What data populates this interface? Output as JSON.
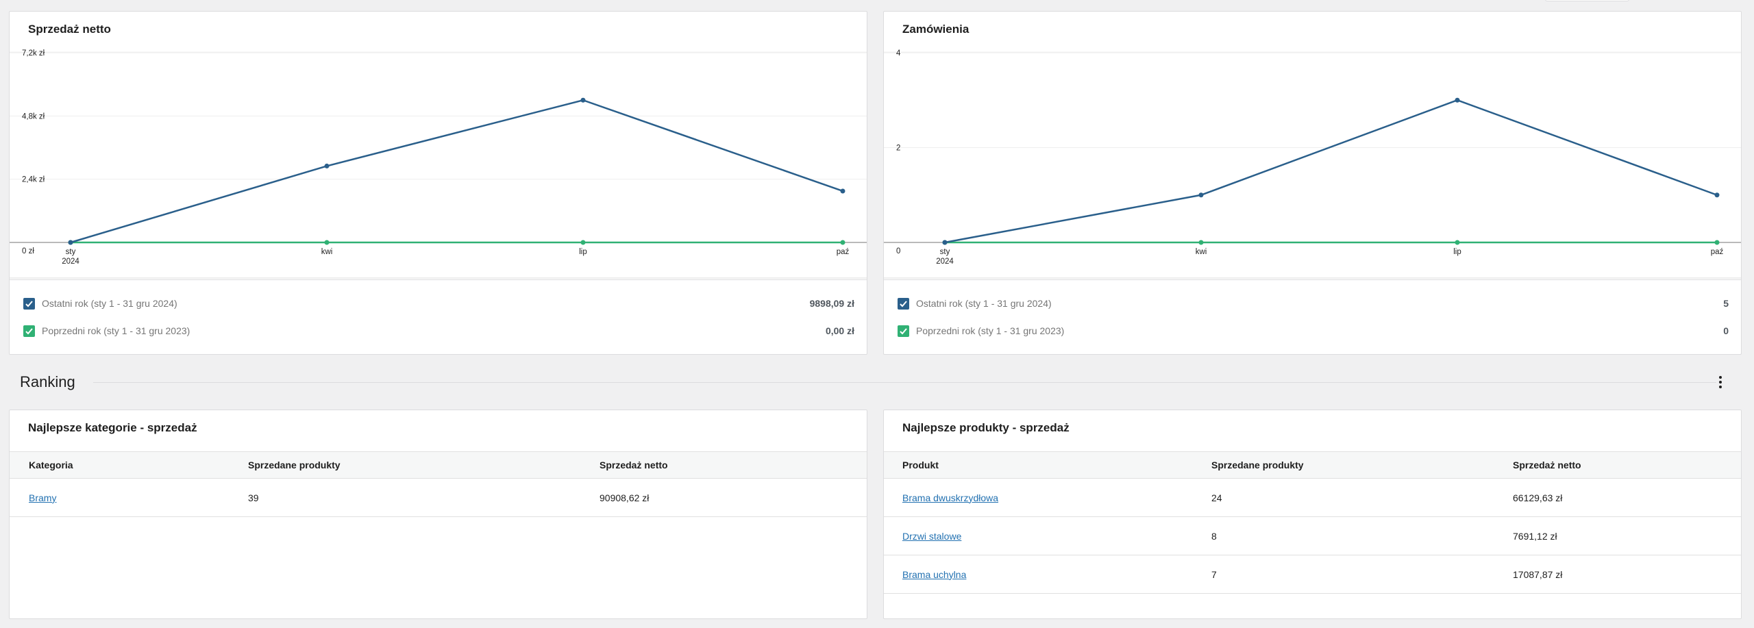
{
  "sales_card": {
    "title": "Sprzedaż netto",
    "y_ticks": [
      "7,2k zł",
      "4,8k zł",
      "2,4k zł",
      "0 zł"
    ],
    "x_ticks": [
      "sty",
      "kwi",
      "lip",
      "paź"
    ],
    "x_year": "2024",
    "legend": [
      {
        "label": "Ostatni rok (sty 1 - 31 gru 2024)",
        "value": "9898,09 zł",
        "checked": true
      },
      {
        "label": "Poprzedni rok (sty 1 - 31 gru 2023)",
        "value": "0,00 zł",
        "checked": true
      }
    ]
  },
  "orders_card": {
    "title": "Zamówienia",
    "y_ticks": [
      "4",
      "2",
      "0"
    ],
    "x_ticks": [
      "sty",
      "kwi",
      "lip",
      "paź"
    ],
    "x_year": "2024",
    "legend": [
      {
        "label": "Ostatni rok (sty 1 - 31 gru 2024)",
        "value": "5",
        "checked": true
      },
      {
        "label": "Poprzedni rok (sty 1 - 31 gru 2023)",
        "value": "0",
        "checked": true
      }
    ]
  },
  "colors": {
    "current_year": "#2a5f8b",
    "previous_year": "#30b174",
    "link": "#2271b1"
  },
  "chart_data": [
    {
      "type": "line",
      "categories": [
        "sty 2024",
        "kwi",
        "lip",
        "paź"
      ],
      "series": [
        {
          "name": "Ostatni rok (sty 1 - 31 gru 2024)",
          "values": [
            0,
            2900,
            5400,
            1950
          ]
        },
        {
          "name": "Poprzedni rok (sty 1 - 31 gru 2023)",
          "values": [
            0,
            0,
            0,
            0
          ]
        }
      ],
      "title": "Sprzedaż netto",
      "y_tick_labels": [
        "0 zł",
        "2,4k zł",
        "4,8k zł",
        "7,2k zł"
      ],
      "ylim": [
        0,
        7200
      ],
      "grid": true
    },
    {
      "type": "line",
      "categories": [
        "sty 2024",
        "kwi",
        "lip",
        "paź"
      ],
      "series": [
        {
          "name": "Ostatni rok (sty 1 - 31 gru 2024)",
          "values": [
            0,
            1,
            3,
            1
          ]
        },
        {
          "name": "Poprzedni rok (sty 1 - 31 gru 2023)",
          "values": [
            0,
            0,
            0,
            0
          ]
        }
      ],
      "title": "Zamówienia",
      "y_tick_labels": [
        "0",
        "2",
        "4"
      ],
      "ylim": [
        0,
        4
      ],
      "grid": true
    }
  ],
  "ranking": {
    "title": "Ranking",
    "more_icon": "vertical-ellipsis-icon"
  },
  "top_categories": {
    "title": "Najlepsze kategorie - sprzedaż",
    "headers": [
      "Kategoria",
      "Sprzedane produkty",
      "Sprzedaż netto"
    ],
    "rows": [
      [
        "Bramy",
        "39",
        "90908,62 zł"
      ]
    ]
  },
  "top_products": {
    "title": "Najlepsze produkty - sprzedaż",
    "headers": [
      "Produkt",
      "Sprzedane produkty",
      "Sprzedaż netto"
    ],
    "rows": [
      [
        "Brama dwuskrzydłowa",
        "24",
        "66129,63 zł"
      ],
      [
        "Drzwi stalowe",
        "8",
        "7691,12 zł"
      ],
      [
        "Brama uchylna",
        "7",
        "17087,87 zł"
      ]
    ]
  }
}
